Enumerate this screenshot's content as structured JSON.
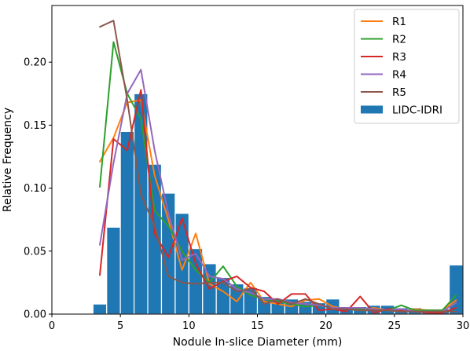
{
  "chart_data": {
    "type": "bar",
    "title": "",
    "xlabel": "Nodule In-slice Diameter (mm)",
    "ylabel": "Relative Frequency",
    "xlim": [
      0,
      30
    ],
    "ylim": [
      0,
      0.245
    ],
    "grid": false,
    "legend_position": "top-right",
    "x_ticks": [
      {
        "value": 0,
        "label": "0"
      },
      {
        "value": 5,
        "label": "5"
      },
      {
        "value": 10,
        "label": "10"
      },
      {
        "value": 15,
        "label": "15"
      },
      {
        "value": 20,
        "label": "20"
      },
      {
        "value": 25,
        "label": "25"
      },
      {
        "value": 30,
        "label": "30"
      }
    ],
    "y_ticks": [
      {
        "value": 0,
        "label": "0.00"
      },
      {
        "value": 0.05,
        "label": "0.05"
      },
      {
        "value": 0.1,
        "label": "0.10"
      },
      {
        "value": 0.15,
        "label": "0.15"
      },
      {
        "value": 0.2,
        "label": "0.20"
      }
    ],
    "histogram": {
      "name": "LIDC-IDRI",
      "color": "#1f77b4",
      "bin_width": 1,
      "bin_starts": [
        3,
        4,
        5,
        6,
        7,
        8,
        9,
        10,
        11,
        12,
        13,
        14,
        15,
        16,
        17,
        18,
        19,
        20,
        21,
        22,
        23,
        24,
        25,
        26,
        27,
        28,
        29
      ],
      "values": [
        0.008,
        0.069,
        0.145,
        0.175,
        0.119,
        0.096,
        0.08,
        0.052,
        0.04,
        0.029,
        0.024,
        0.021,
        0.014,
        0.012,
        0.012,
        0.01,
        0.009,
        0.012,
        0.006,
        0.006,
        0.007,
        0.007,
        0.005,
        0.005,
        0.004,
        0.004,
        0.039
      ]
    },
    "series": [
      {
        "name": "R1",
        "color": "#ff7f0e",
        "x": [
          3.5,
          4.5,
          5.5,
          6.5,
          7.5,
          8.5,
          9.5,
          10.5,
          11.5,
          12.5,
          13.5,
          14.5,
          15.5,
          16.5,
          17.5,
          18.5,
          19.5,
          20.5,
          21.5,
          22.5,
          23.5,
          24.5,
          25.5,
          26.5,
          27.5,
          28.5,
          29.5
        ],
        "values": [
          0.121,
          0.14,
          0.168,
          0.17,
          0.11,
          0.075,
          0.035,
          0.064,
          0.024,
          0.018,
          0.01,
          0.025,
          0.01,
          0.008,
          0.006,
          0.011,
          0.012,
          0.006,
          0.004,
          0.003,
          0.005,
          0.003,
          0.002,
          0.004,
          0.003,
          0.003,
          0.011
        ]
      },
      {
        "name": "R2",
        "color": "#2ca02c",
        "x": [
          3.5,
          4.5,
          5.5,
          6.5,
          7.5,
          8.5,
          9.5,
          10.5,
          11.5,
          12.5,
          13.5,
          14.5,
          15.5,
          16.5,
          17.5,
          18.5,
          19.5,
          20.5,
          21.5,
          22.5,
          23.5,
          24.5,
          25.5,
          26.5,
          27.5,
          28.5,
          29.5
        ],
        "values": [
          0.101,
          0.216,
          0.175,
          0.155,
          0.082,
          0.07,
          0.05,
          0.035,
          0.025,
          0.038,
          0.022,
          0.015,
          0.012,
          0.01,
          0.008,
          0.006,
          0.007,
          0.005,
          0.005,
          0.004,
          0.004,
          0.003,
          0.007,
          0.003,
          0.003,
          0.003,
          0.015
        ]
      },
      {
        "name": "R3",
        "color": "#d62728",
        "x": [
          3.5,
          4.5,
          5.5,
          6.5,
          7.5,
          8.5,
          9.5,
          10.5,
          11.5,
          12.5,
          13.5,
          14.5,
          15.5,
          16.5,
          17.5,
          18.5,
          19.5,
          20.5,
          21.5,
          22.5,
          23.5,
          24.5,
          25.5,
          26.5,
          27.5,
          28.5,
          29.5
        ],
        "values": [
          0.031,
          0.139,
          0.13,
          0.178,
          0.064,
          0.045,
          0.076,
          0.04,
          0.02,
          0.026,
          0.03,
          0.021,
          0.018,
          0.008,
          0.016,
          0.016,
          0.003,
          0.004,
          0.002,
          0.014,
          0.001,
          0.004,
          0.003,
          0.002,
          0.001,
          0.001,
          0.005
        ]
      },
      {
        "name": "R4",
        "color": "#9467bd",
        "x": [
          3.5,
          4.5,
          5.5,
          6.5,
          7.5,
          8.5,
          9.5,
          10.5,
          11.5,
          12.5,
          13.5,
          14.5,
          15.5,
          16.5,
          17.5,
          18.5,
          19.5,
          20.5,
          21.5,
          22.5,
          23.5,
          24.5,
          25.5,
          26.5,
          27.5,
          28.5,
          29.5
        ],
        "values": [
          0.055,
          0.12,
          0.175,
          0.194,
          0.13,
          0.08,
          0.043,
          0.048,
          0.03,
          0.028,
          0.02,
          0.017,
          0.012,
          0.012,
          0.009,
          0.008,
          0.007,
          0.005,
          0.005,
          0.005,
          0.004,
          0.003,
          0.004,
          0.002,
          0.002,
          0.002,
          0.009
        ]
      },
      {
        "name": "R5",
        "color": "#8c564b",
        "x": [
          3.5,
          4.5,
          5.5,
          6.5,
          7.5,
          8.5,
          9.5,
          10.5,
          11.5,
          12.5,
          13.5,
          14.5,
          15.5,
          16.5,
          17.5,
          18.5,
          19.5,
          20.5,
          21.5,
          22.5,
          23.5,
          24.5,
          25.5,
          26.5,
          27.5,
          28.5,
          29.5
        ],
        "values": [
          0.228,
          0.233,
          0.17,
          0.095,
          0.07,
          0.03,
          0.025,
          0.024,
          0.025,
          0.025,
          0.018,
          0.02,
          0.008,
          0.012,
          0.008,
          0.012,
          0.008,
          0.004,
          0.004,
          0.003,
          0.003,
          0.003,
          0.002,
          0.002,
          0.002,
          0.002,
          0.002
        ]
      }
    ]
  }
}
